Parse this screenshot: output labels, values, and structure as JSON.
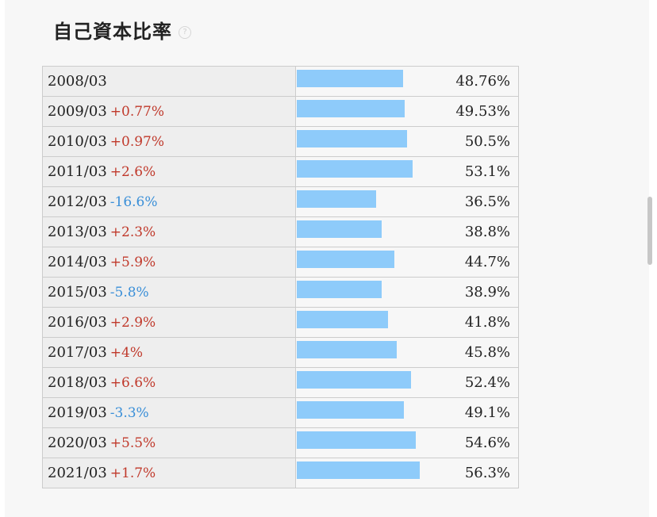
{
  "header": {
    "title": "自己資本比率",
    "help_icon": "question-circle-icon",
    "help_glyph": "?"
  },
  "colors": {
    "bar": "#8ecbfa",
    "positive": "#c0392b",
    "negative": "#3a8fd8"
  },
  "chart_data": {
    "type": "bar",
    "title": "自己資本比率",
    "categories": [
      "2008/03",
      "2009/03",
      "2010/03",
      "2011/03",
      "2012/03",
      "2013/03",
      "2014/03",
      "2015/03",
      "2016/03",
      "2017/03",
      "2018/03",
      "2019/03",
      "2020/03",
      "2021/03"
    ],
    "changes": [
      "",
      "+0.77%",
      "+0.97%",
      "+2.6%",
      "-16.6%",
      "+2.3%",
      "+5.9%",
      "-5.8%",
      "+2.9%",
      "+4%",
      "+6.6%",
      "-3.3%",
      "+5.5%",
      "+1.7%"
    ],
    "values": [
      48.76,
      49.53,
      50.5,
      53.1,
      36.5,
      38.8,
      44.7,
      38.9,
      41.8,
      45.8,
      52.4,
      49.1,
      54.6,
      56.3
    ],
    "value_labels": [
      "48.76%",
      "49.53%",
      "50.5%",
      "53.1%",
      "36.5%",
      "38.8%",
      "44.7%",
      "38.9%",
      "41.8%",
      "45.8%",
      "52.4%",
      "49.1%",
      "54.6%",
      "56.3%"
    ]
  }
}
